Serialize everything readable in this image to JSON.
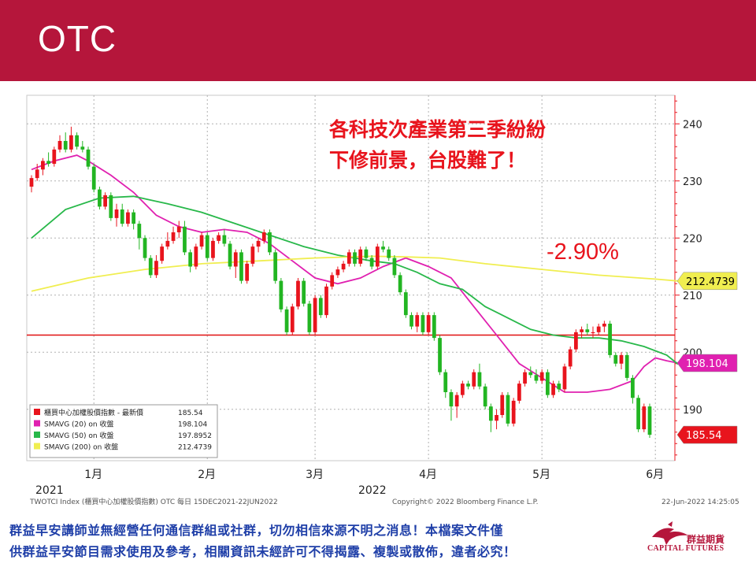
{
  "header": {
    "title": "OTC"
  },
  "colors": {
    "brand": "#b5163b",
    "up": "#e8141d",
    "down": "#22b522",
    "sma20": "#e020b0",
    "sma50": "#28b84a",
    "sma200": "#f0ee50",
    "reference": "#e01010",
    "text_blue": "#1f3fa8"
  },
  "annotation": {
    "line1": "各科技次產業第三季紛紛",
    "line2": "下修前景，台股難了！",
    "pct": "-2.90%"
  },
  "footer": {
    "left": "TWOTCI Index (櫃買中心加權股價指數) OTC  每日 15DEC2021-22JUN2022",
    "center": "Copyright© 2022 Bloomberg Finance L.P.",
    "right": "22-Jun-2022  14:25:05"
  },
  "disclaimer": {
    "line1": "群益早安講師並無經營任何通信群組或社群，切勿相信來源不明之消息！本檔案文件僅",
    "line2": "供群益早安節目需求使用及參考，相關資訊未經許可不得揭露、複製或散佈，違者必究！"
  },
  "logo": {
    "name": "群益期貨",
    "en": "CAPITAL FUTURES",
    "icon": "capital-futures-bird-icon"
  },
  "chart_data": {
    "type": "candlestick",
    "y_ticks": [
      190,
      200,
      210,
      220,
      230,
      240
    ],
    "ylim": [
      181,
      245
    ],
    "x_labels": [
      {
        "label": "2021",
        "index": 0
      },
      {
        "label": "1月",
        "index": 11
      },
      {
        "label": "2月",
        "index": 31
      },
      {
        "label": "3月",
        "index": 50
      },
      {
        "label": "2022",
        "index": 64
      },
      {
        "label": "4月",
        "index": 70
      },
      {
        "label": "5月",
        "index": 90
      },
      {
        "label": "6月",
        "index": 110
      }
    ],
    "reference_level": 203,
    "legend": [
      {
        "name": "櫃買中心加權股價指數 - 最新價",
        "value": "185.54",
        "color": "#e8141d"
      },
      {
        "name": "SMAVG (20)  on 收盤",
        "value": "198.104",
        "color": "#e020b0"
      },
      {
        "name": "SMAVG (50)  on 收盤",
        "value": "197.8952",
        "color": "#28b84a"
      },
      {
        "name": "SMAVG (200)  on 收盤",
        "value": "212.4739",
        "color": "#f0ee50"
      }
    ],
    "price_tags": [
      {
        "label": "212.4739",
        "value": 212.4739,
        "bg": "#f0ee50",
        "fg": "#000000"
      },
      {
        "label": "198.104",
        "value": 198.104,
        "bg": "#e020b0",
        "fg": "#ffffff"
      },
      {
        "label": "185.54",
        "value": 185.54,
        "bg": "#e8141d",
        "fg": "#ffffff"
      }
    ],
    "series": [
      {
        "name": "SMAVG (20)",
        "color": "#e020b0",
        "values": [
          [
            0,
            232
          ],
          [
            4,
            233.5
          ],
          [
            8,
            234.5
          ],
          [
            10,
            233.5
          ],
          [
            14,
            231
          ],
          [
            18,
            228
          ],
          [
            22,
            224
          ],
          [
            26,
            222
          ],
          [
            30,
            221
          ],
          [
            34,
            221.5
          ],
          [
            38,
            221
          ],
          [
            42,
            219
          ],
          [
            46,
            216
          ],
          [
            50,
            213
          ],
          [
            54,
            212
          ],
          [
            58,
            213
          ],
          [
            62,
            215
          ],
          [
            66,
            216.5
          ],
          [
            70,
            215
          ],
          [
            74,
            213
          ],
          [
            78,
            208
          ],
          [
            82,
            203
          ],
          [
            86,
            198
          ],
          [
            90,
            195.5
          ],
          [
            94,
            193
          ],
          [
            98,
            193
          ],
          [
            102,
            193.5
          ],
          [
            106,
            195
          ],
          [
            108,
            197.5
          ],
          [
            110,
            199
          ],
          [
            112,
            198.5
          ],
          [
            114,
            198.1
          ]
        ]
      },
      {
        "name": "SMAVG (50)",
        "color": "#28b84a",
        "values": [
          [
            0,
            220
          ],
          [
            6,
            225
          ],
          [
            12,
            227
          ],
          [
            18,
            227.3
          ],
          [
            24,
            226
          ],
          [
            30,
            224.5
          ],
          [
            36,
            222.5
          ],
          [
            42,
            220.5
          ],
          [
            48,
            218.5
          ],
          [
            54,
            217
          ],
          [
            60,
            216
          ],
          [
            64,
            215.5
          ],
          [
            68,
            214
          ],
          [
            72,
            212
          ],
          [
            76,
            211
          ],
          [
            80,
            208
          ],
          [
            84,
            206
          ],
          [
            88,
            204
          ],
          [
            92,
            203
          ],
          [
            96,
            202.5
          ],
          [
            100,
            202.5
          ],
          [
            104,
            202
          ],
          [
            108,
            201
          ],
          [
            112,
            199.5
          ],
          [
            114,
            197.9
          ]
        ]
      },
      {
        "name": "SMAVG (200)",
        "color": "#f0ee50",
        "values": [
          [
            0,
            210.7
          ],
          [
            10,
            213
          ],
          [
            20,
            214.5
          ],
          [
            30,
            215.5
          ],
          [
            40,
            216
          ],
          [
            50,
            216.5
          ],
          [
            60,
            216.8
          ],
          [
            66,
            216.7
          ],
          [
            72,
            216.5
          ],
          [
            80,
            215.5
          ],
          [
            90,
            214.5
          ],
          [
            100,
            213.5
          ],
          [
            110,
            212.8
          ],
          [
            114,
            212.47
          ]
        ]
      }
    ],
    "candles": [
      [
        229,
        231,
        228,
        230.5
      ],
      [
        230.5,
        233,
        230,
        232
      ],
      [
        232,
        234,
        231,
        233.5
      ],
      [
        233.5,
        235,
        232.5,
        233
      ],
      [
        233,
        236,
        232.5,
        235.5
      ],
      [
        235.5,
        238,
        235,
        237
      ],
      [
        237,
        238.5,
        235,
        235.5
      ],
      [
        235.5,
        239.5,
        235,
        238
      ],
      [
        238,
        238.5,
        235.5,
        236
      ],
      [
        236,
        237,
        235,
        235.5
      ],
      [
        235.5,
        236,
        232,
        232.5
      ],
      [
        232.5,
        233,
        228,
        228.5
      ],
      [
        228.5,
        229,
        225,
        225.5
      ],
      [
        225.5,
        228,
        225,
        227.5
      ],
      [
        227.5,
        228,
        223,
        223.5
      ],
      [
        223.5,
        226,
        222,
        225
      ],
      [
        225,
        226,
        222,
        222.5
      ],
      [
        222.5,
        225,
        222,
        224.5
      ],
      [
        224.5,
        225,
        221.5,
        222.5
      ],
      [
        222.5,
        223,
        218,
        220
      ],
      [
        220,
        220.5,
        216,
        216.5
      ],
      [
        216.5,
        217,
        213,
        213.5
      ],
      [
        213.5,
        217,
        213,
        216
      ],
      [
        216,
        219,
        215.5,
        218.5
      ],
      [
        218.5,
        221,
        218,
        219.5
      ],
      [
        219.5,
        222,
        219,
        221
      ],
      [
        221,
        223,
        220,
        222
      ],
      [
        222,
        223,
        217,
        217.5
      ],
      [
        217.5,
        218,
        214,
        215
      ],
      [
        215,
        219,
        214.5,
        218.5
      ],
      [
        218.5,
        221,
        218,
        220.5
      ],
      [
        220.5,
        221,
        216,
        216.5
      ],
      [
        216.5,
        220,
        216,
        219.5
      ],
      [
        219.5,
        221,
        219,
        220.5
      ],
      [
        220.5,
        221.5,
        218.5,
        219
      ],
      [
        219,
        219.5,
        214.5,
        215
      ],
      [
        215,
        218,
        213,
        217.5
      ],
      [
        217.5,
        218,
        212,
        212.5
      ],
      [
        212.5,
        216,
        212,
        215.5
      ],
      [
        215.5,
        219,
        215,
        218.5
      ],
      [
        218.5,
        220,
        217.5,
        219.5
      ],
      [
        219.5,
        221.5,
        219,
        221
      ],
      [
        221,
        221.5,
        217,
        217.5
      ],
      [
        217.5,
        218,
        212,
        212.5
      ],
      [
        212.5,
        213,
        207,
        207.5
      ],
      [
        207.5,
        208,
        203,
        203.5
      ],
      [
        203.5,
        208.5,
        203,
        208
      ],
      [
        208,
        213,
        207.5,
        212.5
      ],
      [
        212.5,
        213,
        208,
        208.5
      ],
      [
        208.5,
        209,
        203,
        203.5
      ],
      [
        203.5,
        210,
        203,
        209.5
      ],
      [
        209.5,
        210,
        206,
        206.5
      ],
      [
        206.5,
        212,
        206,
        211.5
      ],
      [
        211.5,
        214,
        211,
        213.5
      ],
      [
        213.5,
        215,
        213,
        214.5
      ],
      [
        214.5,
        216,
        214,
        215.5
      ],
      [
        215.5,
        218,
        215,
        217.5
      ],
      [
        217.5,
        218,
        215,
        215.5
      ],
      [
        215.5,
        218.5,
        215,
        218
      ],
      [
        218,
        218.5,
        216,
        216.5
      ],
      [
        216.5,
        217,
        214.5,
        215
      ],
      [
        215,
        219,
        214.5,
        218.5
      ],
      [
        218.5,
        219.5,
        217.5,
        218
      ],
      [
        218,
        218.5,
        216,
        216.5
      ],
      [
        216.5,
        217,
        213,
        213.5
      ],
      [
        213.5,
        214,
        210,
        210.5
      ],
      [
        210.5,
        211,
        206,
        206.5
      ],
      [
        206.5,
        207,
        204,
        204.5
      ],
      [
        204.5,
        207,
        203.5,
        206.5
      ],
      [
        206.5,
        207,
        203,
        203.5
      ],
      [
        203.5,
        207,
        203,
        206.5
      ],
      [
        206.5,
        207,
        202,
        202.5
      ],
      [
        202.5,
        203,
        196,
        196.5
      ],
      [
        196.5,
        197,
        192,
        193
      ],
      [
        193,
        193.5,
        188,
        190.5
      ],
      [
        190.5,
        193,
        188.5,
        192.5
      ],
      [
        192.5,
        195,
        192,
        194.5
      ],
      [
        194.5,
        195,
        193.5,
        194
      ],
      [
        194,
        197,
        193.5,
        196.5
      ],
      [
        196.5,
        198,
        193.5,
        194
      ],
      [
        194,
        194.5,
        190,
        190.5
      ],
      [
        190.5,
        191,
        186,
        188
      ],
      [
        188,
        190,
        186.5,
        189
      ],
      [
        189,
        193,
        188.5,
        192.5
      ],
      [
        192.5,
        193,
        187,
        187.5
      ],
      [
        187.5,
        192,
        187,
        191.5
      ],
      [
        191.5,
        195,
        191,
        194.5
      ],
      [
        194.5,
        197,
        194,
        196.5
      ],
      [
        196.5,
        197.5,
        195.5,
        196
      ],
      [
        196,
        197,
        194.5,
        195
      ],
      [
        195,
        197,
        194.5,
        196.5
      ],
      [
        196.5,
        197,
        192,
        192.5
      ],
      [
        192.5,
        195,
        192,
        194.5
      ],
      [
        194.5,
        195,
        193,
        193.5
      ],
      [
        193.5,
        198,
        193,
        197.5
      ],
      [
        197.5,
        201,
        197,
        200.5
      ],
      [
        200.5,
        204,
        200,
        203.5
      ],
      [
        203.5,
        204.5,
        202.5,
        204
      ],
      [
        204,
        205,
        203,
        203.5
      ],
      [
        203.5,
        204.5,
        202.5,
        203.5
      ],
      [
        203.5,
        205,
        203,
        204.5
      ],
      [
        204.5,
        205.5,
        203.5,
        205
      ],
      [
        205,
        205.5,
        199,
        199.5
      ],
      [
        199.5,
        200,
        197.5,
        198
      ],
      [
        198,
        200,
        197,
        199.5
      ],
      [
        199.5,
        200,
        195,
        195.5
      ],
      [
        195.5,
        196,
        191,
        192
      ],
      [
        192,
        192.5,
        186,
        186.5
      ],
      [
        186.5,
        191,
        186,
        190.5
      ],
      [
        190.5,
        191,
        185,
        185.54
      ]
    ]
  }
}
